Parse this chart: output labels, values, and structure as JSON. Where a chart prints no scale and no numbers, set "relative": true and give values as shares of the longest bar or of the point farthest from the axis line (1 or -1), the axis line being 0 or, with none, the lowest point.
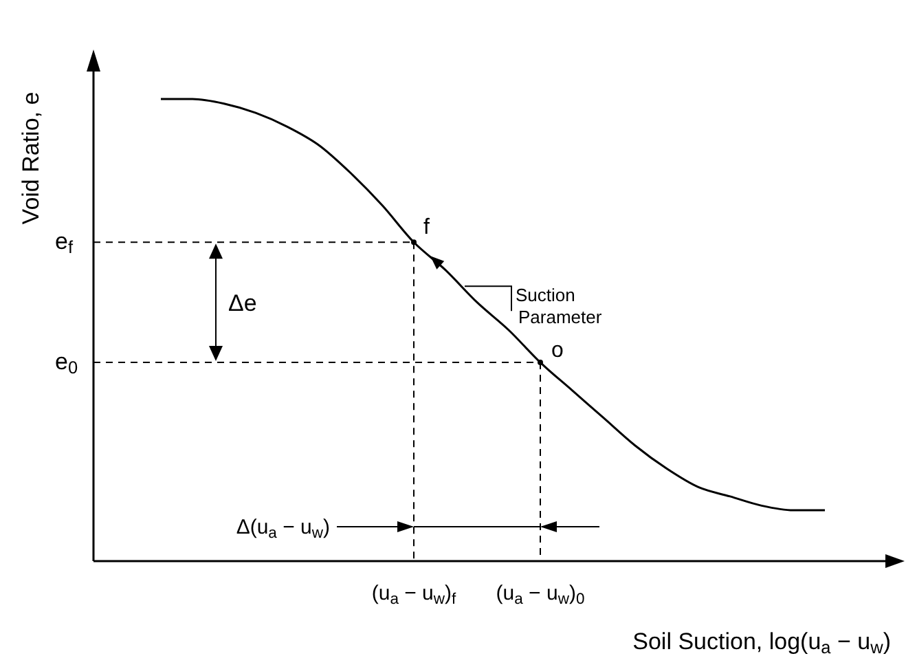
{
  "chart_data": {
    "type": "line",
    "relative": true,
    "xlabel": "Soil Suction, log(u$_{a}$ − u$_{w}$)",
    "ylabel": "Void Ratio, e",
    "categories": [
      null,
      null,
      null,
      null,
      null,
      null,
      null,
      null,
      "(u$_{a}$ − u$_{w}$)$_{f}$",
      null,
      null,
      null,
      "(u$_{a}$ − u$_{w}$)$_{0}$",
      null,
      null,
      null,
      null,
      null,
      null,
      null,
      null,
      null
    ],
    "series": [
      {
        "color": "#000000",
        "values": [
          1.0,
          1.0,
          0.99,
          0.97,
          0.94,
          0.9,
          0.84,
          0.77,
          0.69,
          0.63,
          0.56,
          0.5,
          0.43,
          0.37,
          0.31,
          0.25,
          0.2,
          0.16,
          0.14,
          0.12,
          0.11,
          0.11
        ]
      }
    ],
    "ref_lines": [
      {
        "axis": "y",
        "value": 0.69,
        "label": "e$_{f}$",
        "line_style": "dashed"
      },
      {
        "axis": "y",
        "value": 0.43,
        "label": "e$_{0}$",
        "line_style": "dashed"
      },
      {
        "axis": "x",
        "value": "(u$_{a}$ − u$_{w}$)$_{f}$",
        "line_style": "dashed"
      },
      {
        "axis": "x",
        "value": "(u$_{a}$ − u$_{w}$)$_{0}$",
        "line_style": "dashed"
      }
    ],
    "annotations": [
      "f",
      "o",
      "Δe",
      "Suction Parameter",
      "Δ(u$_{a}$ − u$_{w}$)"
    ],
    "marker": "none",
    "line_style": "solid"
  }
}
